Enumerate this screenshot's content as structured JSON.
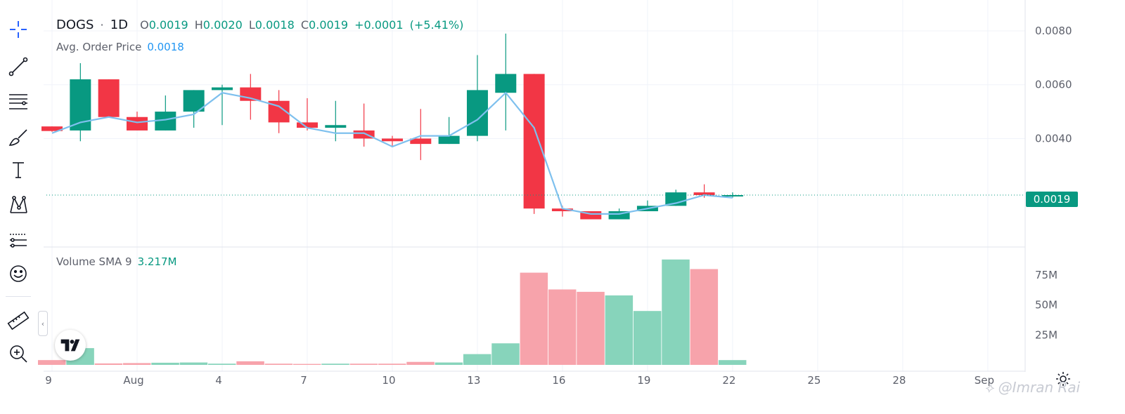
{
  "legend": {
    "symbol": "DOGS",
    "sep": "·",
    "interval": "1D",
    "o_label": "O",
    "o_value": "0.0019",
    "h_label": "H",
    "h_value": "0.0020",
    "l_label": "L",
    "l_value": "0.0018",
    "c_label": "C",
    "c_value": "0.0019",
    "change": "+0.0001",
    "change_pct": "(+5.41%)",
    "avg_label": "Avg. Order Price",
    "avg_value": "0.0018",
    "volume_label": "Volume SMA 9",
    "volume_value": "3.217M"
  },
  "last_price": "0.0019",
  "watermark": "@Imran Rai",
  "toolbar_icons": [
    "crosshair-icon",
    "trend-line-icon",
    "fib-lines-icon",
    "brush-icon",
    "text-icon",
    "pattern-icon",
    "forecast-icon",
    "emoji-icon",
    "ruler-icon",
    "zoom-in-icon"
  ],
  "colors": {
    "up": "#089981",
    "down": "#f23645",
    "avg_line": "#7ec0ee",
    "vol_up": "#87d4bb",
    "vol_down": "#f7a3ab"
  },
  "chart_data": {
    "type": "candlestick",
    "price_axis": {
      "ylim": [
        0.0015,
        0.0082
      ],
      "ticks": [
        "0.0080",
        "0.0060",
        "0.0040"
      ]
    },
    "volume_axis": {
      "ylim": [
        0,
        92
      ],
      "unit": "M",
      "ticks": [
        "75M",
        "50M",
        "25M"
      ]
    },
    "x_labels": [
      "9",
      "Aug",
      "4",
      "7",
      "10",
      "13",
      "16",
      "19",
      "22",
      "25",
      "28",
      "Sep"
    ],
    "candles": [
      {
        "date": "Jul 29",
        "o": 0.00445,
        "h": 0.00445,
        "l": 0.00425,
        "c": 0.00428,
        "v": 4
      },
      {
        "date": "Jul 30",
        "o": 0.0043,
        "h": 0.0068,
        "l": 0.0039,
        "c": 0.0062,
        "v": 14
      },
      {
        "date": "Jul 31",
        "o": 0.0062,
        "h": 0.0062,
        "l": 0.0048,
        "c": 0.0048,
        "v": 1.2
      },
      {
        "date": "Aug 1",
        "o": 0.0048,
        "h": 0.005,
        "l": 0.0043,
        "c": 0.0043,
        "v": 1.5
      },
      {
        "date": "Aug 2",
        "o": 0.0043,
        "h": 0.0056,
        "l": 0.0043,
        "c": 0.005,
        "v": 1.8
      },
      {
        "date": "Aug 3",
        "o": 0.005,
        "h": 0.0058,
        "l": 0.0044,
        "c": 0.0058,
        "v": 2
      },
      {
        "date": "Aug 4",
        "o": 0.0058,
        "h": 0.006,
        "l": 0.0045,
        "c": 0.0059,
        "v": 1
      },
      {
        "date": "Aug 5",
        "o": 0.0059,
        "h": 0.0064,
        "l": 0.0047,
        "c": 0.0054,
        "v": 3
      },
      {
        "date": "Aug 6",
        "o": 0.0054,
        "h": 0.0058,
        "l": 0.0042,
        "c": 0.0046,
        "v": 1
      },
      {
        "date": "Aug 7",
        "o": 0.0046,
        "h": 0.0055,
        "l": 0.0043,
        "c": 0.0044,
        "v": 0.8
      },
      {
        "date": "Aug 8",
        "o": 0.0044,
        "h": 0.0054,
        "l": 0.0039,
        "c": 0.0045,
        "v": 1
      },
      {
        "date": "Aug 9",
        "o": 0.0043,
        "h": 0.0053,
        "l": 0.0037,
        "c": 0.004,
        "v": 1
      },
      {
        "date": "Aug 10",
        "o": 0.004,
        "h": 0.0041,
        "l": 0.0037,
        "c": 0.0039,
        "v": 1
      },
      {
        "date": "Aug 11",
        "o": 0.004,
        "h": 0.0051,
        "l": 0.0032,
        "c": 0.0038,
        "v": 2.5
      },
      {
        "date": "Aug 12",
        "o": 0.0038,
        "h": 0.0048,
        "l": 0.0038,
        "c": 0.0041,
        "v": 2
      },
      {
        "date": "Aug 13",
        "o": 0.0041,
        "h": 0.0071,
        "l": 0.0039,
        "c": 0.0058,
        "v": 9
      },
      {
        "date": "Aug 14",
        "o": 0.0057,
        "h": 0.0079,
        "l": 0.0043,
        "c": 0.0064,
        "v": 18
      },
      {
        "date": "Aug 15",
        "o": 0.0064,
        "h": 0.0064,
        "l": 0.0012,
        "c": 0.0014,
        "v": 77
      },
      {
        "date": "Aug 16",
        "o": 0.0014,
        "h": 0.0015,
        "l": 0.0011,
        "c": 0.0013,
        "v": 63
      },
      {
        "date": "Aug 17",
        "o": 0.0013,
        "h": 0.0013,
        "l": 0.001,
        "c": 0.001,
        "v": 61
      },
      {
        "date": "Aug 18",
        "o": 0.001,
        "h": 0.0014,
        "l": 0.001,
        "c": 0.0013,
        "v": 58
      },
      {
        "date": "Aug 19",
        "o": 0.0013,
        "h": 0.0017,
        "l": 0.0013,
        "c": 0.0015,
        "v": 45
      },
      {
        "date": "Aug 20",
        "o": 0.0015,
        "h": 0.0021,
        "l": 0.0015,
        "c": 0.002,
        "v": 88
      },
      {
        "date": "Aug 21",
        "o": 0.002,
        "h": 0.0023,
        "l": 0.0018,
        "c": 0.0019,
        "v": 80
      },
      {
        "date": "Aug 22",
        "o": 0.0019,
        "h": 0.002,
        "l": 0.0018,
        "c": 0.0019,
        "v": 4
      }
    ],
    "avg_order_price": [
      0.0042,
      0.0046,
      0.0048,
      0.0046,
      0.0047,
      0.0049,
      0.0057,
      0.0055,
      0.0052,
      0.0044,
      0.0042,
      0.0042,
      0.0037,
      0.0041,
      0.0041,
      0.0047,
      0.0057,
      0.0044,
      0.0014,
      0.0012,
      0.0012,
      0.0014,
      0.0016,
      0.0019,
      0.0018
    ]
  }
}
